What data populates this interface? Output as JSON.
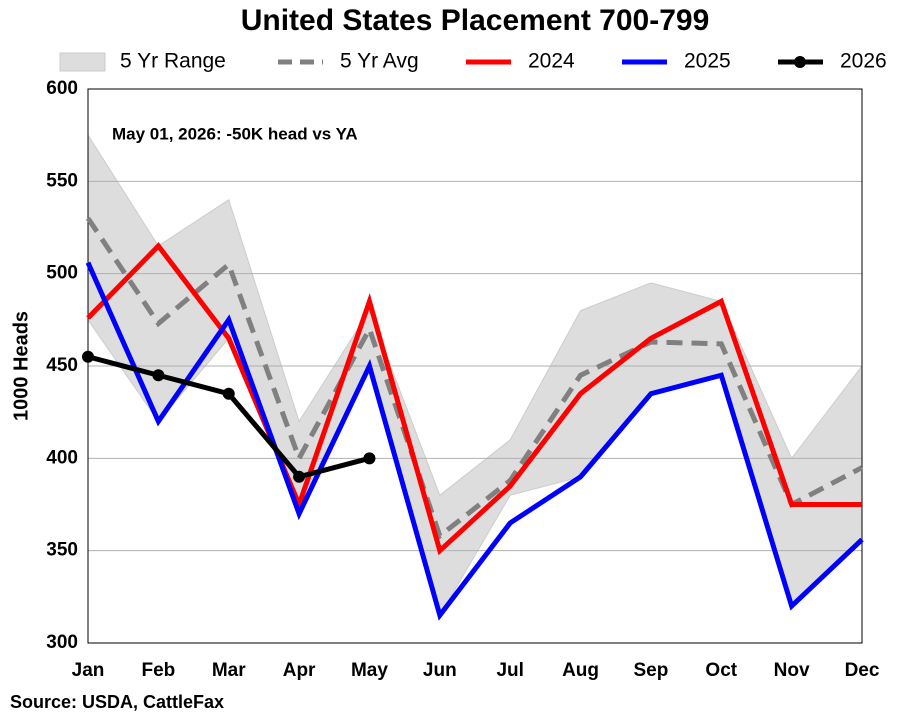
{
  "chart_data": {
    "type": "line",
    "title": "United States Placement 700-799",
    "ylabel": "1000 Heads",
    "annotation": "May 01, 2026: -50K head vs YA",
    "source": "Source: USDA, CattleFax",
    "categories": [
      "Jan",
      "Feb",
      "Mar",
      "Apr",
      "May",
      "Jun",
      "Jul",
      "Aug",
      "Sep",
      "Oct",
      "Nov",
      "Dec"
    ],
    "ylim": [
      300,
      600
    ],
    "yticks": [
      300,
      350,
      400,
      450,
      500,
      550,
      600
    ],
    "grid": true,
    "range": {
      "name": "5 Yr Range",
      "color": "#dddddd",
      "high": [
        575,
        515,
        540,
        420,
        480,
        380,
        410,
        480,
        495,
        485,
        400,
        450
      ],
      "low": [
        475,
        420,
        465,
        375,
        450,
        315,
        380,
        390,
        435,
        445,
        320,
        355
      ]
    },
    "series": [
      {
        "name": "5 Yr Avg",
        "color": "#808080",
        "dashed": true,
        "values": [
          530,
          473,
          505,
          400,
          470,
          358,
          388,
          445,
          463,
          462,
          375,
          395
        ]
      },
      {
        "name": "2024",
        "color": "#ff0000",
        "values": [
          476,
          515,
          465,
          375,
          485,
          350,
          385,
          435,
          465,
          485,
          375,
          375
        ]
      },
      {
        "name": "2025",
        "color": "#0000ff",
        "values": [
          506,
          420,
          475,
          370,
          450,
          315,
          365,
          390,
          435,
          445,
          320,
          356
        ]
      },
      {
        "name": "2026",
        "color": "#000000",
        "markers": true,
        "values": [
          455,
          445,
          435,
          390,
          400,
          null,
          null,
          null,
          null,
          null,
          null,
          null
        ]
      }
    ]
  }
}
